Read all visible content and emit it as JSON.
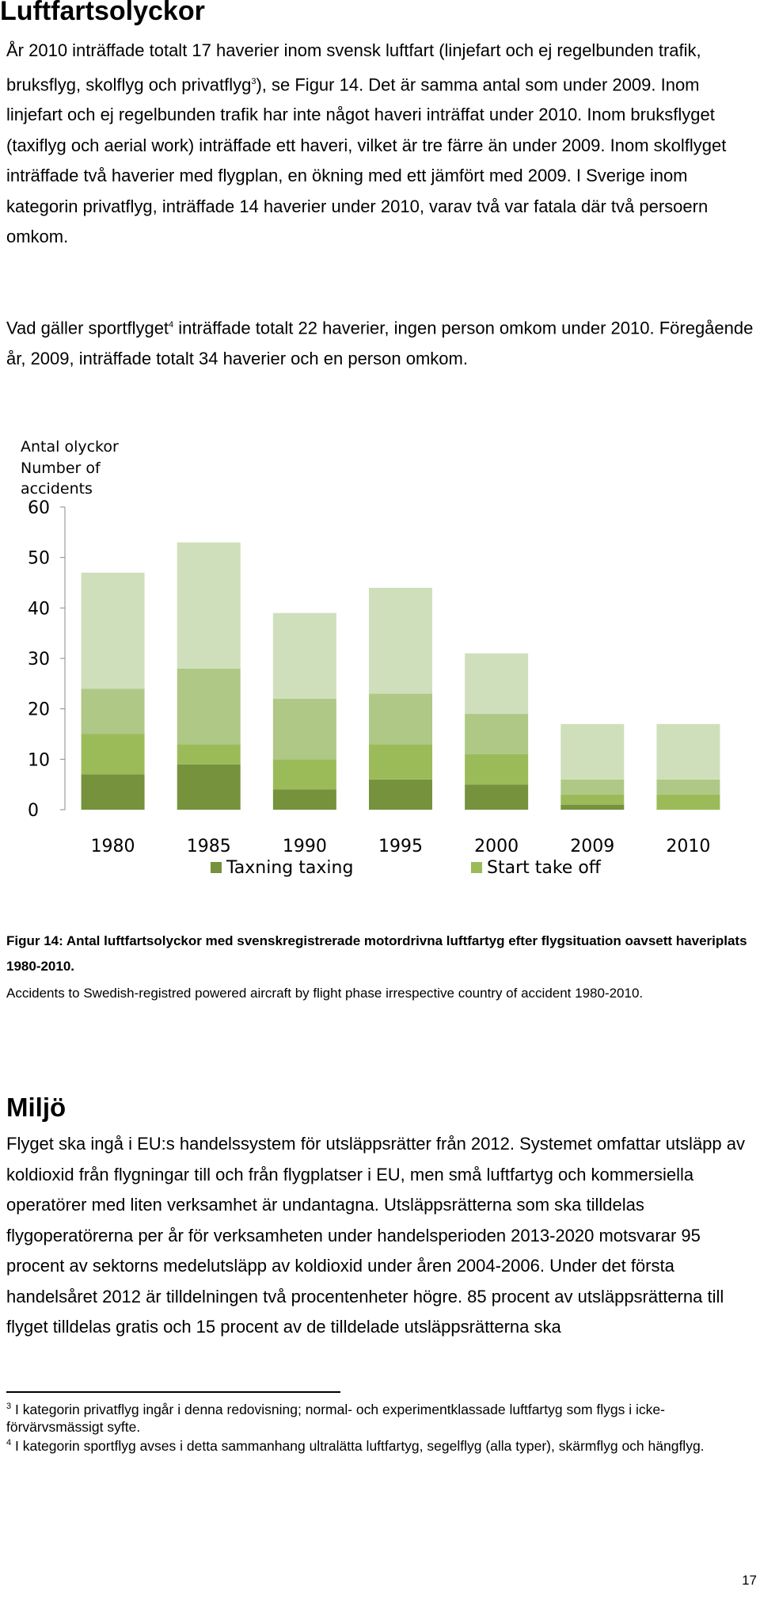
{
  "section1": {
    "heading": "Luftfartsolyckor",
    "p1": {
      "a": "År 2010 inträffade totalt 17 haverier inom svensk luftfart (linjefart och ej regelbunden trafik, bruksflyg, skolflyg och privatflyg",
      "sup": "3",
      "b": "), se Figur 14. Det är samma antal som under 2009. Inom linjefart och ej regelbunden trafik har inte något haveri inträffat under 2010. Inom bruksflyget (taxiflyg och aerial work) inträffade ett haveri, vilket är tre färre än under 2009. Inom skolflyget inträffade två haverier med flygplan, en ökning med ett jämfört med 2009. I Sverige inom kategorin privatflyg, inträffade 14 haverier under 2010, varav två var fatala där två persoern omkom."
    },
    "p2": {
      "a": "Vad gäller sportflyget",
      "sup": "4",
      "b": " inträffade totalt 22 haverier, ingen person omkom under 2010. Föregående år, 2009, inträffade totalt 34 haverier och en person omkom."
    }
  },
  "chart_data": {
    "type": "bar",
    "stacked": true,
    "ylabel_sv": "Antal olyckor",
    "ylabel_en": "Number of accidents",
    "ylim": [
      0,
      60
    ],
    "yticks": [
      0,
      10,
      20,
      30,
      40,
      50,
      60
    ],
    "grid": false,
    "legend_position": "bottom",
    "categories": [
      "1980",
      "1985",
      "1990",
      "1995",
      "2000",
      "2009",
      "2010"
    ],
    "series": [
      {
        "name": "Taxning taxing",
        "color": "#76923c",
        "values": [
          7,
          9,
          4,
          6,
          5,
          1,
          0
        ]
      },
      {
        "name": "Start take off",
        "color": "#9bbb59",
        "values": [
          8,
          4,
          6,
          7,
          6,
          2,
          3
        ]
      },
      {
        "color": "#afc886",
        "values": [
          9,
          15,
          12,
          10,
          8,
          3,
          3
        ]
      },
      {
        "color": "#d0dfbb",
        "values": [
          23,
          25,
          17,
          21,
          12,
          11,
          11
        ]
      }
    ]
  },
  "caption": {
    "bold": "Figur 14: Antal luftfartsolyckor med svenskregistrerade motordrivna luftfartyg efter flygsituation oavsett haveriplats 1980-2010.",
    "plain": "Accidents to Swedish-registred powered aircraft by flight phase irrespective country of accident 1980-2010."
  },
  "section2": {
    "heading": "Miljö",
    "p1": "Flyget ska ingå i EU:s handelssystem för utsläppsrätter från 2012. Systemet omfattar utsläpp av koldioxid från flygningar till och från flygplatser i EU, men små luftfartyg och kommersiella operatörer med liten verksamhet är undantagna. Utsläppsrätterna som ska tilldelas flygoperatörerna per år för verksamheten under handelsperioden 2013-2020 motsvarar 95 procent av sektorns medelutsläpp av koldioxid under åren 2004-2006. Under det första handelsåret 2012 är tilldelningen två procentenheter högre. 85 procent av utsläppsrätterna till flyget tilldelas gratis och 15 procent av de tilldelade utsläppsrätterna ska"
  },
  "footnotes": [
    {
      "num": "3",
      "text": " I kategorin privatflyg ingår i denna redovisning; normal- och experimentklassade luftfartyg som flygs i icke-förvärvsmässigt syfte."
    },
    {
      "num": "4",
      "text": " I kategorin sportflyg avses i detta sammanhang ultralätta luftfartyg, segelflyg (alla typer), skärmflyg och hängflyg."
    }
  ],
  "page_number": "17"
}
